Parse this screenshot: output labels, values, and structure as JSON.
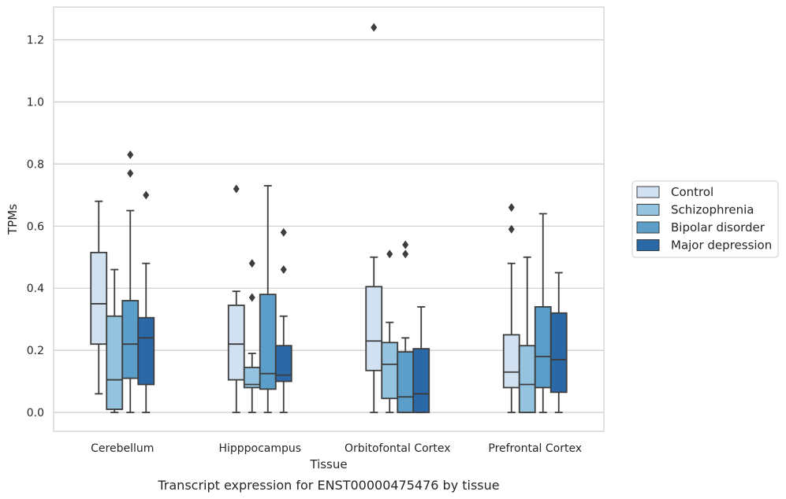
{
  "chart_data": {
    "type": "box",
    "title": "",
    "caption": "Transcript expression for ENST00000475476 by tissue",
    "xlabel": "Tissue",
    "ylabel": "TPMs",
    "ylim": [
      -0.06,
      1.3
    ],
    "yticks": [
      0.0,
      0.2,
      0.4,
      0.6,
      0.8,
      1.0,
      1.2
    ],
    "ytick_labels": [
      "0.0",
      "0.2",
      "0.4",
      "0.6",
      "0.8",
      "1.0",
      "1.2"
    ],
    "grid": "horizontal",
    "legend_position": "right",
    "categories": [
      "Cerebellum",
      "Hipppocampus",
      "Orbitofontal Cortex",
      "Prefrontal Cortex"
    ],
    "series": [
      {
        "name": "Control",
        "color": "#d1e1f1",
        "boxes": [
          {
            "whislo": 0.06,
            "q1": 0.22,
            "med": 0.35,
            "q3": 0.515,
            "whishi": 0.68,
            "fliers": []
          },
          {
            "whislo": 0.0,
            "q1": 0.105,
            "med": 0.22,
            "q3": 0.345,
            "whishi": 0.39,
            "fliers": [
              0.72
            ]
          },
          {
            "whislo": 0.0,
            "q1": 0.135,
            "med": 0.23,
            "q3": 0.405,
            "whishi": 0.5,
            "fliers": [
              1.24
            ]
          },
          {
            "whislo": 0.0,
            "q1": 0.08,
            "med": 0.13,
            "q3": 0.25,
            "whishi": 0.48,
            "fliers": [
              0.59,
              0.66
            ]
          }
        ]
      },
      {
        "name": "Schizophrenia",
        "color": "#94c4df",
        "boxes": [
          {
            "whislo": 0.0,
            "q1": 0.01,
            "med": 0.105,
            "q3": 0.31,
            "whishi": 0.46,
            "fliers": []
          },
          {
            "whislo": 0.0,
            "q1": 0.08,
            "med": 0.09,
            "q3": 0.145,
            "whishi": 0.19,
            "fliers": [
              0.37,
              0.48
            ]
          },
          {
            "whislo": 0.0,
            "q1": 0.045,
            "med": 0.155,
            "q3": 0.225,
            "whishi": 0.29,
            "fliers": [
              0.51
            ]
          },
          {
            "whislo": 0.0,
            "q1": 0.0,
            "med": 0.09,
            "q3": 0.215,
            "whishi": 0.5,
            "fliers": []
          }
        ]
      },
      {
        "name": "Bipolar disorder",
        "color": "#5a9ec9",
        "boxes": [
          {
            "whislo": 0.0,
            "q1": 0.11,
            "med": 0.22,
            "q3": 0.36,
            "whishi": 0.65,
            "fliers": [
              0.77,
              0.83
            ]
          },
          {
            "whislo": 0.0,
            "q1": 0.075,
            "med": 0.125,
            "q3": 0.38,
            "whishi": 0.73,
            "fliers": []
          },
          {
            "whislo": 0.0,
            "q1": 0.0,
            "med": 0.05,
            "q3": 0.195,
            "whishi": 0.24,
            "fliers": [
              0.51,
              0.54
            ]
          },
          {
            "whislo": 0.0,
            "q1": 0.08,
            "med": 0.18,
            "q3": 0.34,
            "whishi": 0.64,
            "fliers": []
          }
        ]
      },
      {
        "name": "Major depression",
        "color": "#2a68a8",
        "boxes": [
          {
            "whislo": 0.0,
            "q1": 0.09,
            "med": 0.24,
            "q3": 0.305,
            "whishi": 0.48,
            "fliers": [
              0.7
            ]
          },
          {
            "whislo": 0.0,
            "q1": 0.1,
            "med": 0.12,
            "q3": 0.215,
            "whishi": 0.31,
            "fliers": [
              0.46,
              0.58
            ]
          },
          {
            "whislo": 0.0,
            "q1": 0.0,
            "med": 0.06,
            "q3": 0.205,
            "whishi": 0.34,
            "fliers": []
          },
          {
            "whislo": 0.0,
            "q1": 0.065,
            "med": 0.17,
            "q3": 0.32,
            "whishi": 0.45,
            "fliers": []
          }
        ]
      }
    ]
  }
}
